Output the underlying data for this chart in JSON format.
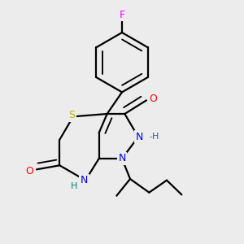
{
  "background_color": "#ececec",
  "atom_colors": {
    "F": "#ff00ff",
    "O": "#ff0000",
    "S": "#b8b800",
    "N": "#0000ee",
    "C": "#000000",
    "H_teal": "#008080"
  },
  "bond_color": "#000000",
  "bond_width": 1.6
}
